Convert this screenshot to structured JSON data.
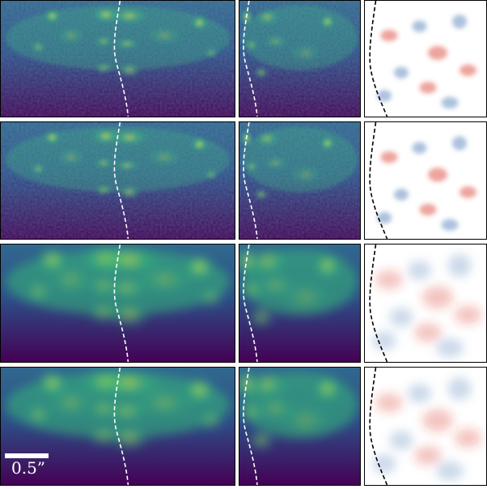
{
  "figure": {
    "rows": [
      {
        "id": "row-1",
        "style": "noisy"
      },
      {
        "id": "row-2",
        "style": "noisy"
      },
      {
        "id": "row-3",
        "style": "smooth"
      },
      {
        "id": "row-4",
        "style": "smooth"
      }
    ],
    "columns": [
      {
        "id": "wide",
        "colormap": "viridis",
        "boundary_line_color": "#ffffff"
      },
      {
        "id": "zoom",
        "colormap": "viridis",
        "boundary_line_color": "#ffffff"
      },
      {
        "id": "residual",
        "colormap": "bwr",
        "boundary_line_color": "#000000"
      }
    ],
    "colors": {
      "viridis_dark": "#440154",
      "viridis_blue": "#31688e",
      "viridis_green": "#35b779",
      "viridis_yellow": "#fde725",
      "residual_red": "#d73027",
      "residual_blue": "#4575b4",
      "frame": "#000000"
    }
  },
  "scalebar": {
    "label": "0.5”"
  }
}
